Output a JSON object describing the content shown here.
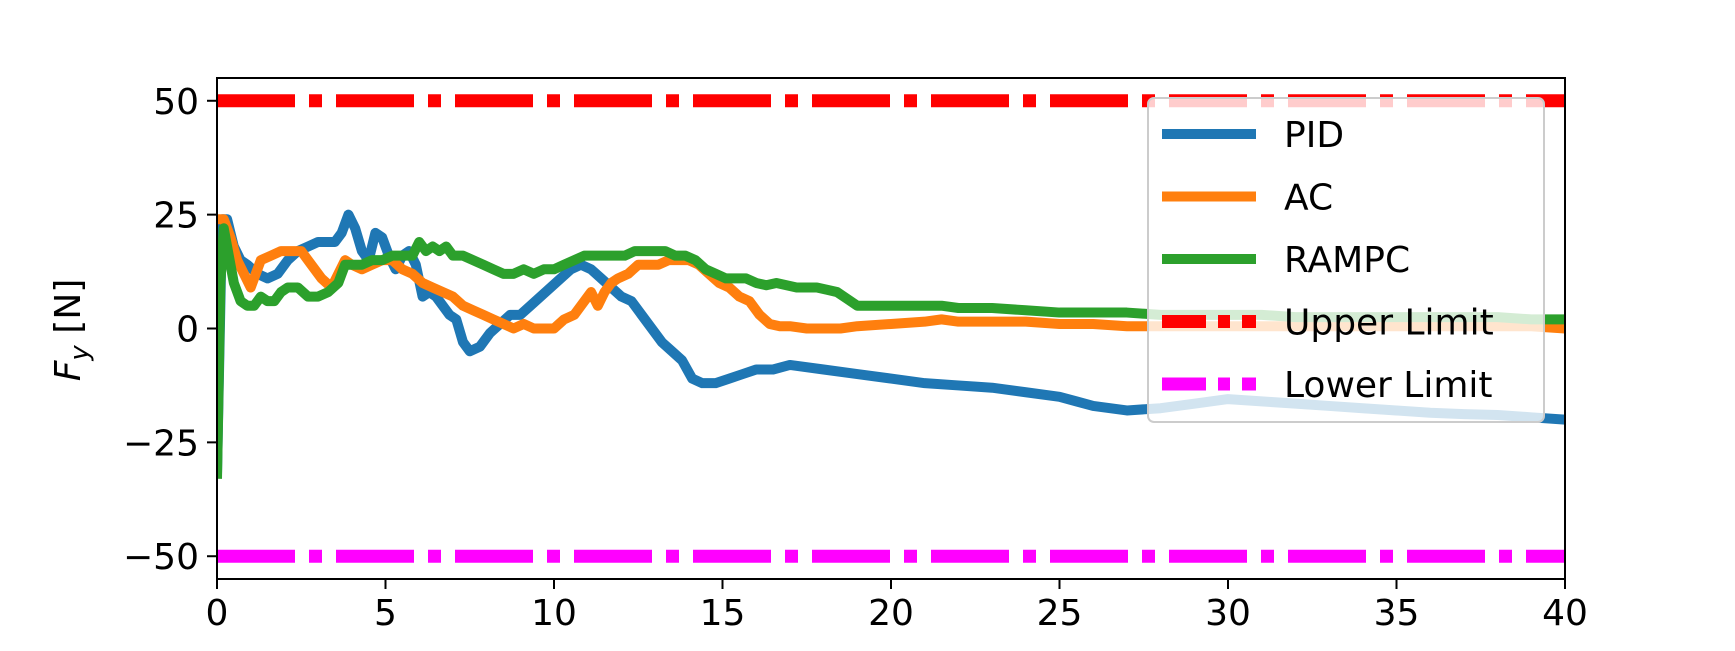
{
  "chart_data": {
    "type": "line",
    "title": "",
    "xlabel": "",
    "ylabel": "F_y [N]",
    "ylabel_parts": {
      "main": "F",
      "sub": "y",
      "unit": " [N]"
    },
    "xlim": [
      0,
      40
    ],
    "ylim": [
      -55,
      55
    ],
    "xticks": [
      0,
      5,
      10,
      15,
      20,
      25,
      30,
      35,
      40
    ],
    "yticks": [
      -50,
      -25,
      0,
      25,
      50
    ],
    "xtick_labels": [
      "0",
      "5",
      "10",
      "15",
      "20",
      "25",
      "30",
      "35",
      "40"
    ],
    "ytick_labels": [
      "−50",
      "−25",
      "0",
      "25",
      "50"
    ],
    "grid": false,
    "legend_position": "top-right",
    "series": [
      {
        "name": "PID",
        "color": "#1f77b4",
        "style": "solid",
        "x": [
          0,
          0.15,
          0.3,
          0.5,
          0.7,
          0.9,
          1.2,
          1.5,
          1.8,
          2.1,
          2.4,
          2.7,
          3.0,
          3.3,
          3.5,
          3.7,
          3.9,
          4.1,
          4.3,
          4.5,
          4.7,
          4.9,
          5.1,
          5.3,
          5.5,
          5.7,
          5.9,
          6.1,
          6.3,
          6.5,
          6.7,
          6.9,
          7.1,
          7.3,
          7.5,
          7.8,
          8.1,
          8.4,
          8.7,
          9.0,
          9.3,
          9.6,
          9.9,
          10.2,
          10.5,
          10.8,
          11.1,
          11.4,
          11.7,
          12.0,
          12.3,
          12.6,
          12.9,
          13.2,
          13.5,
          13.8,
          14.1,
          14.4,
          14.8,
          15.2,
          15.6,
          16.0,
          16.5,
          17.0,
          18.0,
          19.0,
          20.0,
          21.0,
          22.0,
          23.0,
          24.0,
          25.0,
          25.5,
          26.0,
          26.5,
          27.0,
          28.0,
          29.0,
          30.0,
          31.0,
          32.0,
          33.0,
          34.0,
          35.0,
          36.0,
          37.0,
          38.0,
          39.0,
          40.0
        ],
        "y": [
          -32,
          24,
          24,
          18,
          15,
          14,
          12,
          11,
          12,
          15,
          17,
          18,
          19,
          19,
          19,
          21,
          25,
          22,
          17,
          15,
          21,
          20,
          16,
          13,
          16,
          17,
          14,
          7,
          8,
          7,
          5,
          3,
          2,
          -3,
          -5,
          -4,
          -1,
          1,
          3,
          3,
          5,
          7,
          9,
          11,
          13,
          14,
          13,
          11,
          9,
          7,
          6,
          3,
          0,
          -3,
          -5,
          -7,
          -11,
          -12,
          -12,
          -11,
          -10,
          -9,
          -9,
          -8,
          -9,
          -10,
          -11,
          -12,
          -12.5,
          -13,
          -14,
          -15,
          -16,
          -17,
          -17.5,
          -18,
          -17.5,
          -16.5,
          -15.5,
          -16,
          -16.5,
          -17,
          -17.5,
          -18,
          -18.5,
          -18.8,
          -19,
          -19.5,
          -20
        ]
      },
      {
        "name": "AC",
        "color": "#ff7f0e",
        "style": "solid",
        "x": [
          0,
          0.2,
          0.4,
          0.6,
          0.8,
          1.0,
          1.3,
          1.6,
          1.9,
          2.2,
          2.5,
          2.8,
          3.1,
          3.4,
          3.6,
          3.8,
          4.0,
          4.3,
          4.6,
          4.9,
          5.2,
          5.5,
          5.8,
          6.1,
          6.4,
          6.7,
          7.0,
          7.3,
          7.6,
          7.9,
          8.2,
          8.5,
          8.8,
          9.1,
          9.4,
          9.7,
          10.0,
          10.3,
          10.6,
          10.9,
          11.1,
          11.3,
          11.5,
          11.7,
          11.9,
          12.2,
          12.5,
          12.8,
          13.1,
          13.4,
          13.7,
          14.0,
          14.3,
          14.6,
          14.9,
          15.2,
          15.5,
          15.8,
          16.1,
          16.4,
          16.7,
          17.0,
          17.5,
          18.0,
          18.5,
          19.0,
          20.0,
          21.0,
          21.5,
          22.0,
          23.0,
          24.0,
          25.0,
          26.0,
          27.0,
          28.0,
          29.0,
          30.0,
          31.0,
          32.0,
          33.0,
          34.0,
          35.0,
          36.0,
          37.0,
          38.0,
          39.0,
          40.0
        ],
        "y": [
          24,
          24,
          20,
          15,
          12,
          9,
          15,
          16,
          17,
          17,
          17,
          14,
          11,
          9,
          12,
          15,
          14,
          13,
          14,
          15,
          15,
          13,
          12,
          10,
          9,
          8,
          7,
          5,
          4,
          3,
          2,
          1,
          0,
          1,
          0,
          0,
          0,
          2,
          3,
          6,
          8,
          5,
          8,
          10,
          11,
          12,
          14,
          14,
          14,
          15,
          15,
          15,
          14,
          12,
          10,
          9,
          7,
          6,
          3,
          1,
          0.5,
          0.5,
          0,
          0,
          0,
          0.5,
          1,
          1.5,
          2,
          1.5,
          1.5,
          1.5,
          1,
          1,
          0.5,
          0.5,
          0.5,
          0.5,
          0.5,
          0.5,
          0.5,
          0.5,
          0.5,
          0.5,
          0.5,
          0.5,
          0.5,
          0
        ]
      },
      {
        "name": "RAMPC",
        "color": "#2ca02c",
        "style": "solid",
        "x": [
          0,
          0.1,
          0.2,
          0.3,
          0.5,
          0.7,
          0.9,
          1.1,
          1.3,
          1.5,
          1.7,
          1.9,
          2.1,
          2.4,
          2.7,
          3.0,
          3.3,
          3.6,
          3.8,
          4.0,
          4.3,
          4.6,
          4.9,
          5.2,
          5.5,
          5.8,
          6.0,
          6.2,
          6.4,
          6.6,
          6.8,
          7.0,
          7.3,
          7.6,
          7.9,
          8.2,
          8.5,
          8.8,
          9.1,
          9.4,
          9.7,
          10.0,
          10.3,
          10.6,
          10.9,
          11.2,
          11.5,
          11.8,
          12.1,
          12.4,
          12.7,
          13.0,
          13.3,
          13.6,
          13.9,
          14.2,
          14.5,
          14.8,
          15.1,
          15.4,
          15.7,
          16.0,
          16.3,
          16.6,
          16.9,
          17.2,
          17.5,
          17.8,
          18.1,
          18.4,
          18.7,
          19.0,
          19.5,
          20.0,
          21.0,
          21.5,
          22.0,
          23.0,
          24.0,
          25.0,
          26.0,
          27.0,
          28.0,
          29.0,
          30.0,
          31.0,
          32.0,
          33.0,
          34.0,
          35.0,
          36.0,
          37.0,
          38.0,
          39.0,
          40.0
        ],
        "y": [
          -33,
          10,
          22,
          18,
          10,
          6,
          5,
          5,
          7,
          6,
          6,
          8,
          9,
          9,
          7,
          7,
          8,
          10,
          14,
          14,
          14,
          15,
          15,
          16,
          16,
          16,
          19,
          17,
          18,
          17,
          18,
          16,
          16,
          15,
          14,
          13,
          12,
          12,
          13,
          12,
          13,
          13,
          14,
          15,
          16,
          16,
          16,
          16,
          16,
          17,
          17,
          17,
          17,
          16,
          16,
          15,
          13,
          12,
          11,
          11,
          11,
          10,
          9.5,
          10,
          9.5,
          9,
          9,
          9,
          8.5,
          8,
          6.5,
          5,
          5,
          5,
          5,
          5,
          4.5,
          4.5,
          4,
          3.5,
          3.5,
          3.5,
          3,
          3,
          3,
          3,
          2.5,
          2.5,
          2.5,
          2.5,
          2.5,
          2.5,
          2.5,
          2,
          2
        ]
      },
      {
        "name": "Upper Limit",
        "color": "#ff0000",
        "style": "dashdot",
        "x": [
          0,
          40
        ],
        "y": [
          50,
          50
        ]
      },
      {
        "name": "Lower Limit",
        "color": "#ff00ff",
        "style": "dashdot",
        "x": [
          0,
          40
        ],
        "y": [
          -50,
          -50
        ]
      }
    ]
  }
}
